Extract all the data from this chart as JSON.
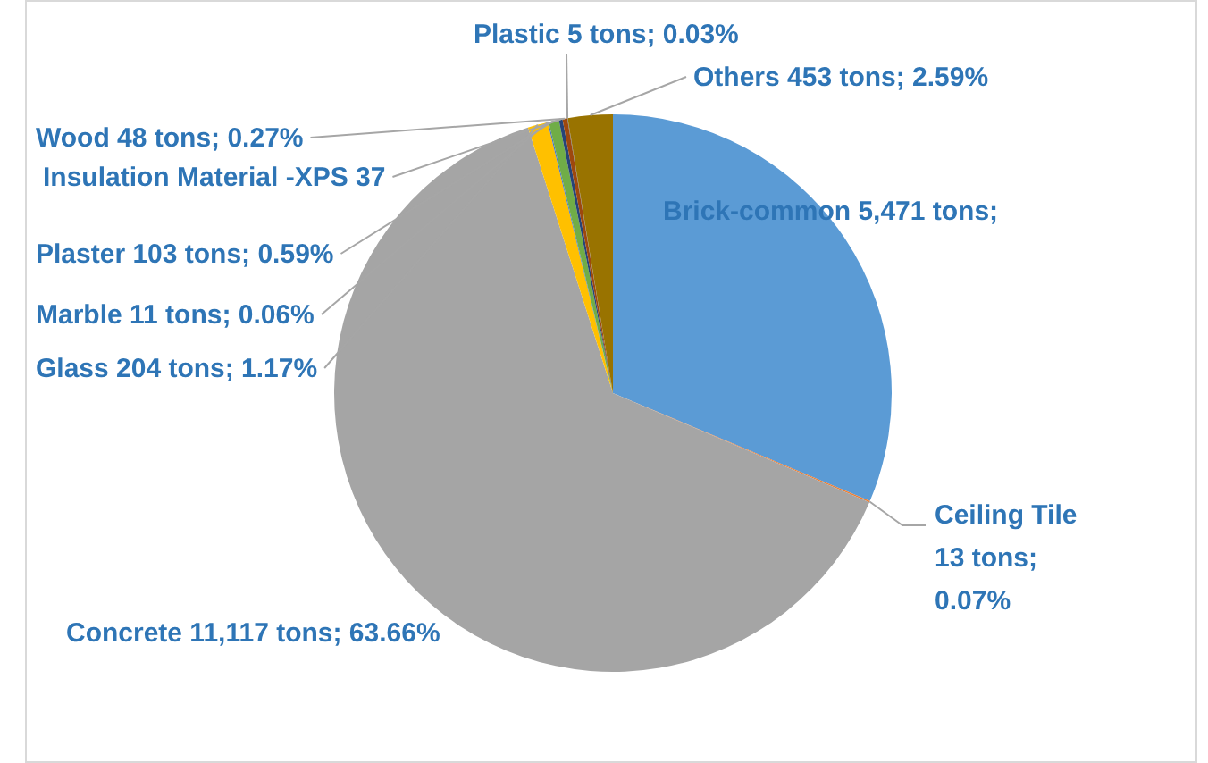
{
  "chart_data": {
    "type": "pie",
    "categories": [
      "Brick-common",
      "Ceiling Tile",
      "Concrete",
      "Glass",
      "Marble",
      "Plaster",
      "Insulation Material -XPS",
      "Wood",
      "Plastic",
      "Others"
    ],
    "values": [
      5471,
      13,
      11117,
      204,
      11,
      103,
      37,
      48,
      5,
      453
    ],
    "colors": [
      "#5b9bd5",
      "#ed7d31",
      "#a5a5a5",
      "#ffc000",
      "#4472c4",
      "#70ad47",
      "#264478",
      "#9e480e",
      "#636363",
      "#997300"
    ],
    "value_labels": [
      "5,471 tons;",
      "13 tons; 0.07%",
      "11,117 tons; 63.66%",
      "204 tons; 1.17%",
      "11 tons; 0.06%",
      "103 tons; 0.59%",
      "37",
      "48 tons; 0.27%",
      "5 tons; 0.03%",
      "453 tons; 2.59%"
    ],
    "legend": false
  }
}
